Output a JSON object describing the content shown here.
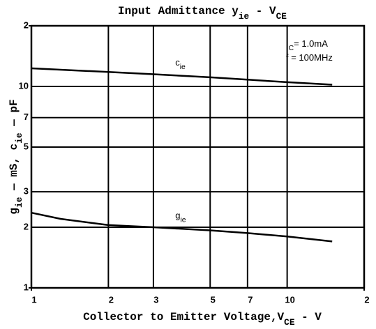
{
  "chart_data": {
    "type": "line",
    "title_parts": [
      "Input Admittance y",
      "ie",
      " - V",
      "CE"
    ],
    "xlabel_parts": [
      "Collector to Emitter Voltage,V",
      "CE",
      " - V"
    ],
    "ylabel_parts": [
      "g",
      "ie",
      " — mS, c",
      "ie",
      " — pF"
    ],
    "annotations": [
      [
        "I",
        "C",
        "= 1.0mA"
      ],
      [
        "f = 100MHz"
      ]
    ],
    "xscale": "log",
    "yscale": "log",
    "grid": true,
    "xlim": [
      1,
      20
    ],
    "ylim": [
      1,
      20
    ],
    "xticks": [
      1,
      2,
      3,
      5,
      7,
      10,
      {
        "value": 20,
        "label": "2"
      }
    ],
    "yticks": [
      1,
      2,
      3,
      5,
      7,
      10,
      {
        "value": 20,
        "label": "2"
      }
    ],
    "series": [
      {
        "name": [
          "c",
          "ie"
        ],
        "color": "#000000",
        "x": [
          1,
          1.5,
          2,
          3,
          5,
          7,
          10,
          15
        ],
        "values": [
          12.3,
          12.0,
          11.8,
          11.5,
          11.1,
          10.8,
          10.5,
          10.2
        ]
      },
      {
        "name": [
          "g",
          "ie"
        ],
        "color": "#000000",
        "x": [
          1,
          1.3,
          2,
          3,
          5,
          7,
          10,
          15
        ],
        "values": [
          2.36,
          2.2,
          2.05,
          2.0,
          1.93,
          1.87,
          1.8,
          1.7
        ]
      }
    ]
  }
}
